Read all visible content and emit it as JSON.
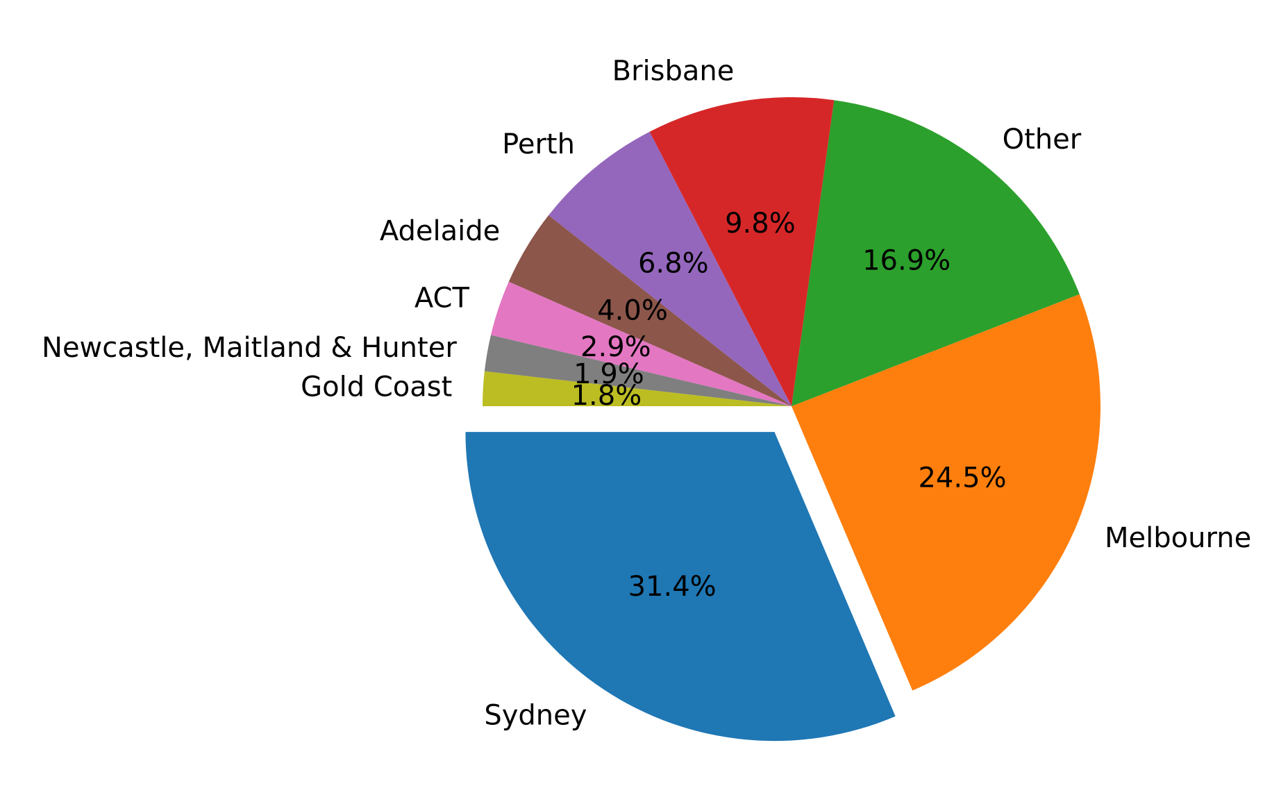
{
  "chart_data": {
    "type": "pie",
    "title": "",
    "start_angle_deg": 180,
    "direction": "counterclockwise",
    "slices": [
      {
        "label": "Sydney",
        "value": 31.4,
        "pct_label": "31.4%",
        "color": "#1f77b4",
        "exploded": true
      },
      {
        "label": "Melbourne",
        "value": 24.5,
        "pct_label": "24.5%",
        "color": "#ff7f0e",
        "exploded": false
      },
      {
        "label": "Other",
        "value": 16.9,
        "pct_label": "16.9%",
        "color": "#2ca02c",
        "exploded": false
      },
      {
        "label": "Brisbane",
        "value": 9.8,
        "pct_label": "9.8%",
        "color": "#d62728",
        "exploded": false
      },
      {
        "label": "Perth",
        "value": 6.8,
        "pct_label": "6.8%",
        "color": "#9467bd",
        "exploded": false
      },
      {
        "label": "Adelaide",
        "value": 4.0,
        "pct_label": "4.0%",
        "color": "#8c564b",
        "exploded": false
      },
      {
        "label": "ACT",
        "value": 2.9,
        "pct_label": "2.9%",
        "color": "#e377c2",
        "exploded": false
      },
      {
        "label": "Newcastle, Maitland & Hunter",
        "value": 1.9,
        "pct_label": "1.9%",
        "color": "#7f7f7f",
        "exploded": false
      },
      {
        "label": "Gold Coast",
        "value": 1.8,
        "pct_label": "1.8%",
        "color": "#bcbd22",
        "exploded": false
      }
    ]
  }
}
